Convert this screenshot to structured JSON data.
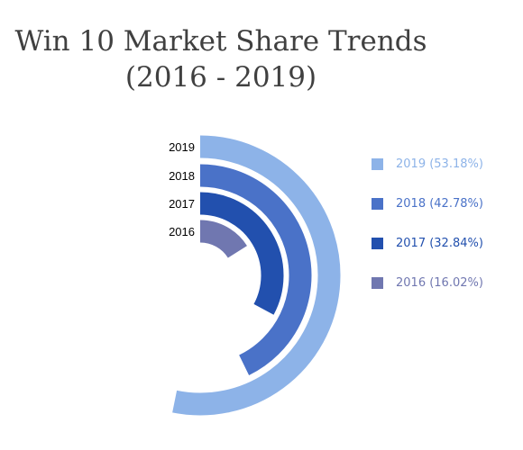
{
  "chart_data": {
    "type": "radial-bar",
    "title_lines": [
      "Win 10 Market Share Trends",
      "(2016 - 2019)"
    ],
    "categories": [
      "2019",
      "2018",
      "2017",
      "2016"
    ],
    "values": [
      53.18,
      42.78,
      32.84,
      16.02
    ],
    "legend": [
      "2019 (53.18%)",
      "2018 (42.78%)",
      "2017 (32.84%)",
      "2016 (16.02%)"
    ],
    "colors": [
      "#8DB3E8",
      "#4A72C8",
      "#2250AE",
      "#7077B0"
    ],
    "legend_position": "right"
  }
}
